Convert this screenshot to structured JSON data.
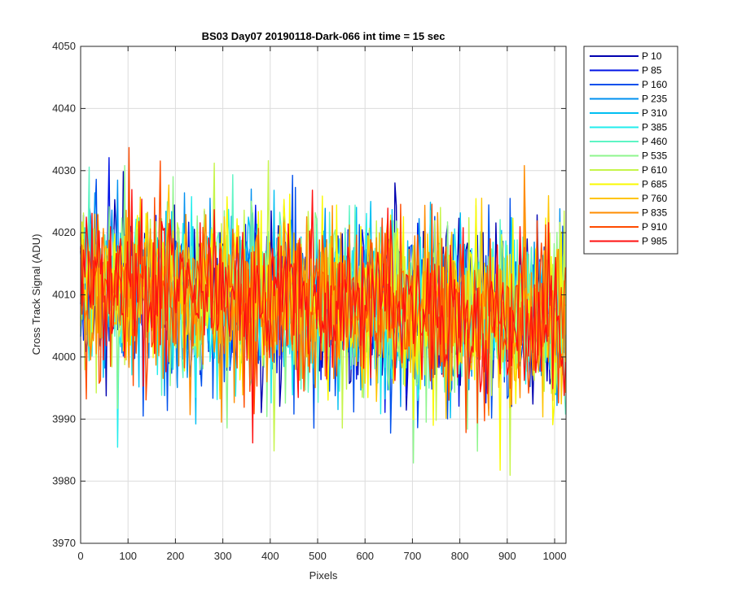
{
  "chart_data": {
    "type": "line",
    "title": "BS03 Day07 20190118-Dark-066 int time = 15 sec",
    "xlabel": "Pixels",
    "ylabel": "Cross Track Signal (ADU)",
    "xlim": [
      0,
      1024
    ],
    "ylim": [
      3970,
      4050
    ],
    "xticks": [
      0,
      100,
      200,
      300,
      400,
      500,
      600,
      700,
      800,
      900,
      1000
    ],
    "yticks": [
      3970,
      3980,
      3990,
      4000,
      4010,
      4020,
      4030,
      4040,
      4050
    ],
    "grid": true,
    "legend_position": "outside-right",
    "noise": {
      "mean_left": 4011.5,
      "mean_right": 4006,
      "std": 7
    },
    "series": [
      {
        "name": "P 10",
        "color": "#0000b0"
      },
      {
        "name": "P 85",
        "color": "#0013e6"
      },
      {
        "name": "P 160",
        "color": "#0050ec"
      },
      {
        "name": "P 235",
        "color": "#0090f0"
      },
      {
        "name": "P 310",
        "color": "#00bff2"
      },
      {
        "name": "P 385",
        "color": "#22eded"
      },
      {
        "name": "P 460",
        "color": "#5df5c4"
      },
      {
        "name": "P 535",
        "color": "#8ef68c"
      },
      {
        "name": "P 610",
        "color": "#c6f54a"
      },
      {
        "name": "P 685",
        "color": "#fafa00"
      },
      {
        "name": "P 760",
        "color": "#ffc400"
      },
      {
        "name": "P 835",
        "color": "#ff8c00"
      },
      {
        "name": "P 910",
        "color": "#ff4b00"
      },
      {
        "name": "P 985",
        "color": "#ff1010"
      }
    ]
  }
}
